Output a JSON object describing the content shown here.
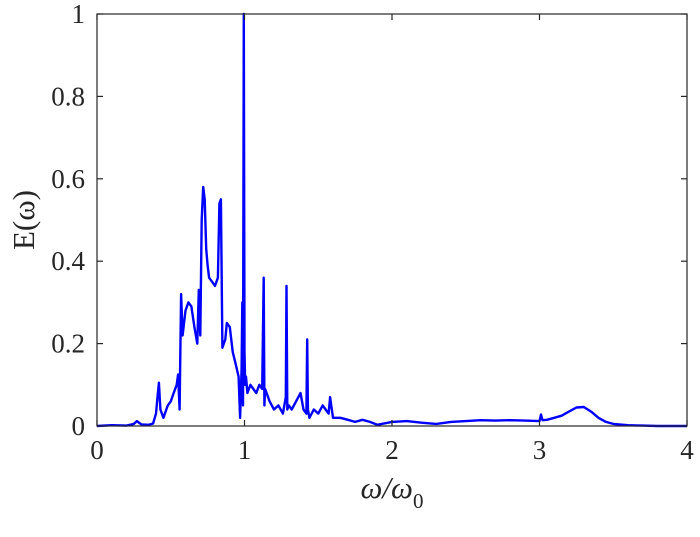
{
  "chart_data": {
    "type": "line",
    "title": "",
    "xlabel": "ω/ω",
    "xlabel_sub": "0",
    "ylabel": "E(ω)",
    "xlim": [
      0,
      4
    ],
    "ylim": [
      0,
      1
    ],
    "xticks": [
      0,
      1,
      2,
      3,
      4
    ],
    "xtick_labels": [
      "0",
      "1",
      "2",
      "3",
      "4"
    ],
    "yticks": [
      0,
      0.2,
      0.4,
      0.6,
      0.8,
      1
    ],
    "ytick_labels": [
      "0",
      "0.2",
      "0.4",
      "0.6",
      "0.8",
      "1"
    ],
    "grid": false,
    "box": true,
    "series": [
      {
        "color": "#0000ff",
        "x": [
          0.0,
          0.1,
          0.2,
          0.25,
          0.27,
          0.3,
          0.35,
          0.38,
          0.4,
          0.41,
          0.42,
          0.43,
          0.45,
          0.48,
          0.5,
          0.52,
          0.54,
          0.55,
          0.56,
          0.57,
          0.58,
          0.6,
          0.62,
          0.64,
          0.66,
          0.68,
          0.69,
          0.7,
          0.71,
          0.72,
          0.73,
          0.74,
          0.75,
          0.76,
          0.78,
          0.8,
          0.82,
          0.83,
          0.84,
          0.85,
          0.86,
          0.87,
          0.88,
          0.9,
          0.92,
          0.94,
          0.96,
          0.97,
          0.98,
          0.985,
          0.99,
          0.995,
          1.0,
          1.005,
          1.01,
          1.02,
          1.04,
          1.06,
          1.08,
          1.1,
          1.12,
          1.13,
          1.135,
          1.14,
          1.15,
          1.17,
          1.2,
          1.23,
          1.26,
          1.28,
          1.285,
          1.29,
          1.3,
          1.32,
          1.35,
          1.38,
          1.4,
          1.42,
          1.425,
          1.43,
          1.44,
          1.47,
          1.5,
          1.53,
          1.55,
          1.57,
          1.58,
          1.6,
          1.65,
          1.7,
          1.75,
          1.8,
          1.85,
          1.9,
          2.0,
          2.1,
          2.2,
          2.3,
          2.4,
          2.5,
          2.6,
          2.7,
          2.8,
          2.9,
          3.0,
          3.01,
          3.02,
          3.05,
          3.1,
          3.15,
          3.2,
          3.25,
          3.3,
          3.35,
          3.4,
          3.45,
          3.5,
          3.6,
          3.7,
          3.8,
          3.9,
          4.0
        ],
        "y": [
          0.0,
          0.002,
          0.001,
          0.005,
          0.012,
          0.004,
          0.003,
          0.006,
          0.03,
          0.07,
          0.105,
          0.04,
          0.02,
          0.05,
          0.06,
          0.08,
          0.1,
          0.125,
          0.04,
          0.32,
          0.22,
          0.28,
          0.3,
          0.29,
          0.24,
          0.2,
          0.33,
          0.22,
          0.5,
          0.58,
          0.55,
          0.43,
          0.39,
          0.36,
          0.35,
          0.34,
          0.36,
          0.54,
          0.55,
          0.19,
          0.2,
          0.21,
          0.25,
          0.24,
          0.18,
          0.15,
          0.12,
          0.02,
          0.14,
          0.3,
          0.05,
          1.0,
          0.18,
          0.1,
          0.12,
          0.08,
          0.1,
          0.09,
          0.08,
          0.1,
          0.09,
          0.36,
          0.05,
          0.09,
          0.08,
          0.06,
          0.04,
          0.05,
          0.03,
          0.07,
          0.34,
          0.04,
          0.05,
          0.04,
          0.06,
          0.08,
          0.04,
          0.03,
          0.21,
          0.04,
          0.02,
          0.04,
          0.03,
          0.05,
          0.04,
          0.03,
          0.07,
          0.02,
          0.02,
          0.015,
          0.01,
          0.015,
          0.01,
          0.003,
          0.01,
          0.012,
          0.008,
          0.005,
          0.01,
          0.012,
          0.014,
          0.013,
          0.014,
          0.013,
          0.012,
          0.028,
          0.014,
          0.015,
          0.02,
          0.025,
          0.035,
          0.045,
          0.046,
          0.035,
          0.02,
          0.01,
          0.005,
          0.002,
          0.001,
          0.0,
          0.0,
          0.0
        ]
      }
    ]
  }
}
